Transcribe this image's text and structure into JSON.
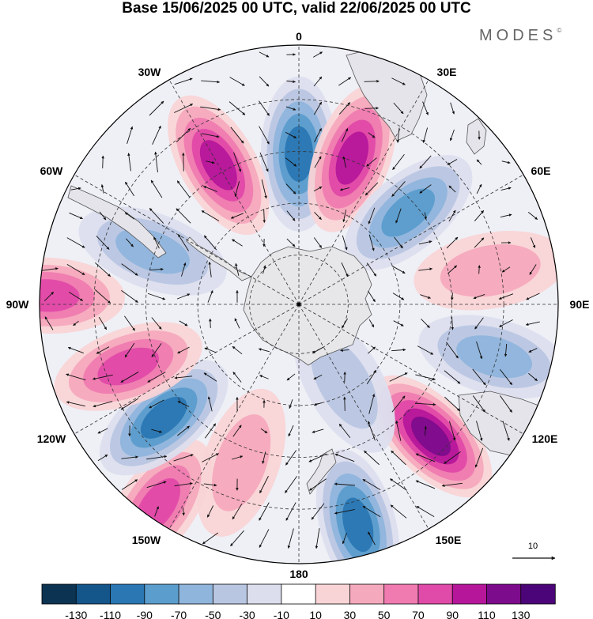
{
  "title": "Base 15/06/2025 00 UTC, valid 22/06/2025 00 UTC",
  "logo": "MODES",
  "logo_mark": "©",
  "longitude_labels": [
    "0",
    "30E",
    "60E",
    "90E",
    "120E",
    "150E",
    "180",
    "150W",
    "120W",
    "90W",
    "60W",
    "30W"
  ],
  "reference_vector": {
    "label": "10"
  },
  "colorbar": {
    "ticks": [
      "-130",
      "-110",
      "-90",
      "-70",
      "-50",
      "-30",
      "-10",
      "10",
      "30",
      "50",
      "70",
      "90",
      "110",
      "130"
    ],
    "colors": [
      "#0c3352",
      "#14558a",
      "#2a77b3",
      "#5b9dcc",
      "#8fb5dc",
      "#b9c6e2",
      "#dcdeee",
      "#ffffff",
      "#f9d4d6",
      "#f5a9bd",
      "#ef7bb0",
      "#e04aa8",
      "#b6169a",
      "#7d0c8c",
      "#4c0578"
    ]
  },
  "anomaly_centers": [
    {
      "lon": 0,
      "lat_frac": 0.58,
      "value": -90
    },
    {
      "lon": 20,
      "lat_frac": 0.6,
      "value": 90
    },
    {
      "lon": 50,
      "lat_frac": 0.55,
      "value": -70
    },
    {
      "lon": 80,
      "lat_frac": 0.75,
      "value": 30
    },
    {
      "lon": 105,
      "lat_frac": 0.78,
      "value": -50
    },
    {
      "lon": 135,
      "lat_frac": 0.72,
      "value": 110
    },
    {
      "lon": 165,
      "lat_frac": 0.88,
      "value": -90
    },
    {
      "lon": 150,
      "lat_frac": 0.35,
      "value": -30
    },
    {
      "lon": 200,
      "lat_frac": 0.65,
      "value": 30
    },
    {
      "lon": 215,
      "lat_frac": 0.95,
      "value": 70
    },
    {
      "lon": 230,
      "lat_frac": 0.68,
      "value": -90
    },
    {
      "lon": 250,
      "lat_frac": 0.7,
      "value": 70
    },
    {
      "lon": 290,
      "lat_frac": 0.6,
      "value": -50
    },
    {
      "lon": 330,
      "lat_frac": 0.62,
      "value": 90
    },
    {
      "lon": 272,
      "lat_frac": 0.97,
      "value": 70
    }
  ]
}
